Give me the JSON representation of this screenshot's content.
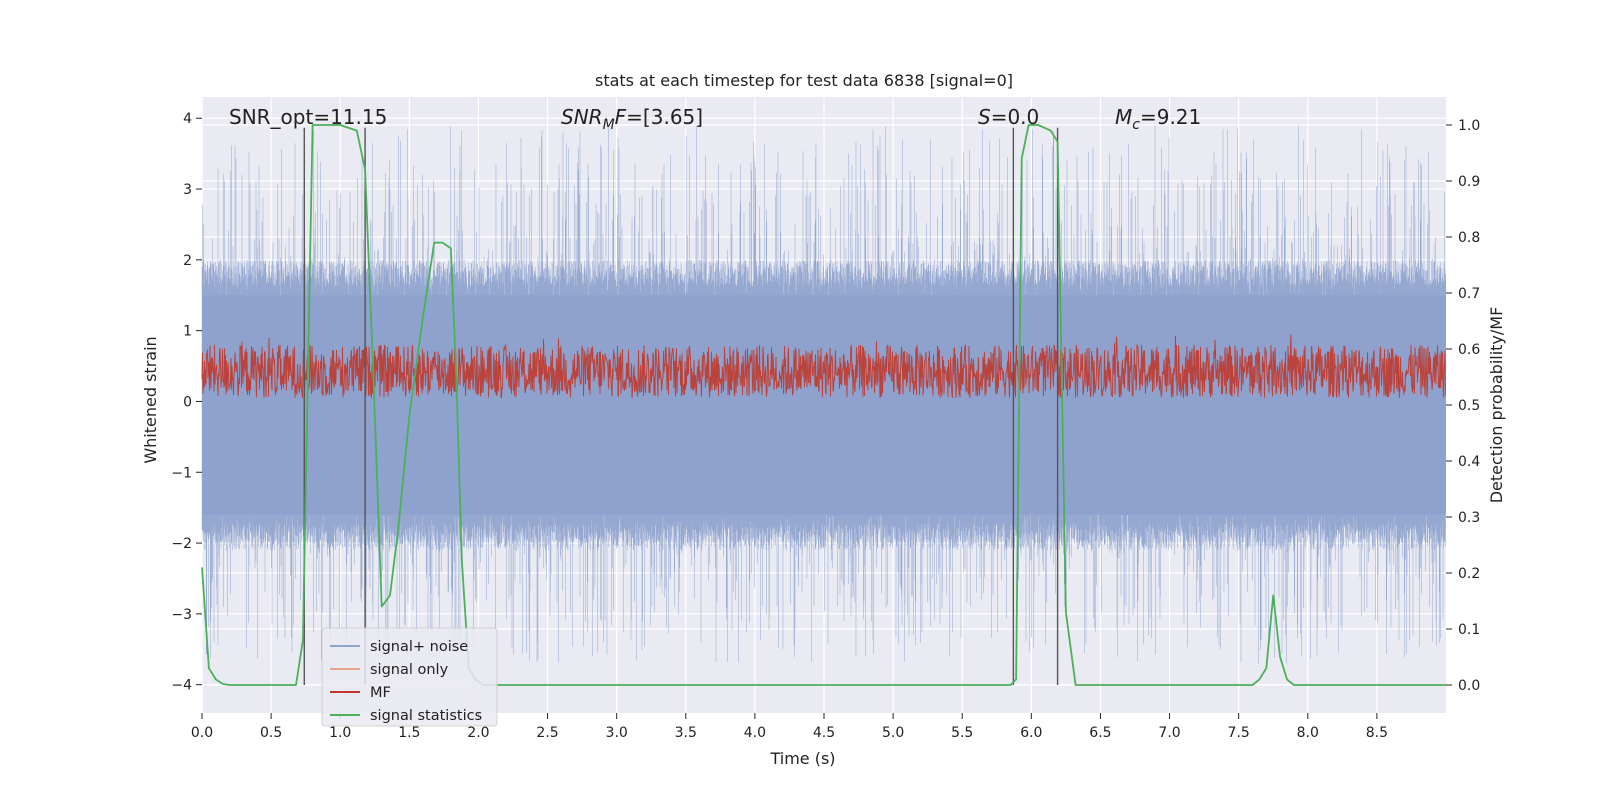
{
  "chart_data": {
    "type": "line",
    "title": "stats at each timestep for test data 6838 [signal=0]",
    "xlabel": "Time (s)",
    "ylabel_left": "Whitened strain",
    "ylabel_right": "Detection probability/MF",
    "xlim": [
      0.0,
      9.0
    ],
    "ylim_left": [
      -4.4,
      4.3
    ],
    "ylim_right": [
      -0.05,
      1.05
    ],
    "x_ticks": [
      "0.0",
      "0.5",
      "1.0",
      "1.5",
      "2.0",
      "2.5",
      "3.0",
      "3.5",
      "4.0",
      "4.5",
      "5.0",
      "5.5",
      "6.0",
      "6.5",
      "7.0",
      "7.5",
      "8.0",
      "8.5"
    ],
    "y_ticks_left": [
      "4",
      "3",
      "2",
      "1",
      "0",
      "−1",
      "−2",
      "−3",
      "−4"
    ],
    "y_ticks_right": [
      "1.0",
      "0.9",
      "0.8",
      "0.7",
      "0.6",
      "0.5",
      "0.4",
      "0.3",
      "0.2",
      "0.1",
      "0.0"
    ],
    "grid": true,
    "legend_position": "lower-left",
    "legend": [
      {
        "name": "signal+ noise",
        "color": "#8fa3cf"
      },
      {
        "name": "signal only",
        "color": "#e8a48a"
      },
      {
        "name": "MF",
        "color": "#c0392b"
      },
      {
        "name": "signal statistics",
        "color": "#4caf5a"
      }
    ],
    "annotations": [
      {
        "prefix": "SNR_opt=11.15",
        "sub": "",
        "suffix": ""
      },
      {
        "prefix": "SNR",
        "sub": "M",
        "suffix": "F=[3.65]"
      },
      {
        "prefix": "S",
        "sub": "",
        "suffix": "=0.0"
      },
      {
        "prefix": "M",
        "sub": "c",
        "suffix": "=9.21"
      }
    ],
    "vertical_markers_x": [
      0.74,
      1.18,
      5.87,
      6.19
    ],
    "series": [
      {
        "name": "signal+ noise",
        "axis": "left",
        "color": "#8fa3cf",
        "band": {
          "low": -1.6,
          "high": 1.5,
          "peak": 3.9,
          "trough": -3.7
        }
      },
      {
        "name": "MF",
        "axis": "left",
        "color": "#c0392b",
        "band": {
          "center": 0.35,
          "low": 0.05,
          "high": 0.8,
          "peak": 1.0
        }
      },
      {
        "name": "signal statistics",
        "axis": "right",
        "color": "#4caf5a",
        "x": [
          0.0,
          0.05,
          0.1,
          0.15,
          0.2,
          0.3,
          0.5,
          0.68,
          0.73,
          0.8,
          1.0,
          1.12,
          1.18,
          1.24,
          1.3,
          1.36,
          1.42,
          1.5,
          1.6,
          1.68,
          1.74,
          1.8,
          1.84,
          1.88,
          1.93,
          1.98,
          2.03,
          2.2,
          5.85,
          5.89,
          5.93,
          5.98,
          6.05,
          6.14,
          6.19,
          6.25,
          6.32,
          6.4,
          7.6,
          7.65,
          7.7,
          7.75,
          7.8,
          7.85,
          7.9,
          7.95,
          8.1,
          9.0
        ],
        "values": [
          0.21,
          0.03,
          0.01,
          0.002,
          0.0,
          0.0,
          0.0,
          0.0,
          0.08,
          1.0,
          1.0,
          0.99,
          0.92,
          0.55,
          0.14,
          0.16,
          0.28,
          0.48,
          0.66,
          0.79,
          0.79,
          0.78,
          0.55,
          0.22,
          0.03,
          0.01,
          0.0,
          0.0,
          0.0,
          0.01,
          0.94,
          1.0,
          1.0,
          0.99,
          0.97,
          0.13,
          0.0,
          0.0,
          0.0,
          0.01,
          0.03,
          0.16,
          0.05,
          0.01,
          0.0,
          0.0,
          0.0,
          0.0
        ]
      }
    ]
  }
}
